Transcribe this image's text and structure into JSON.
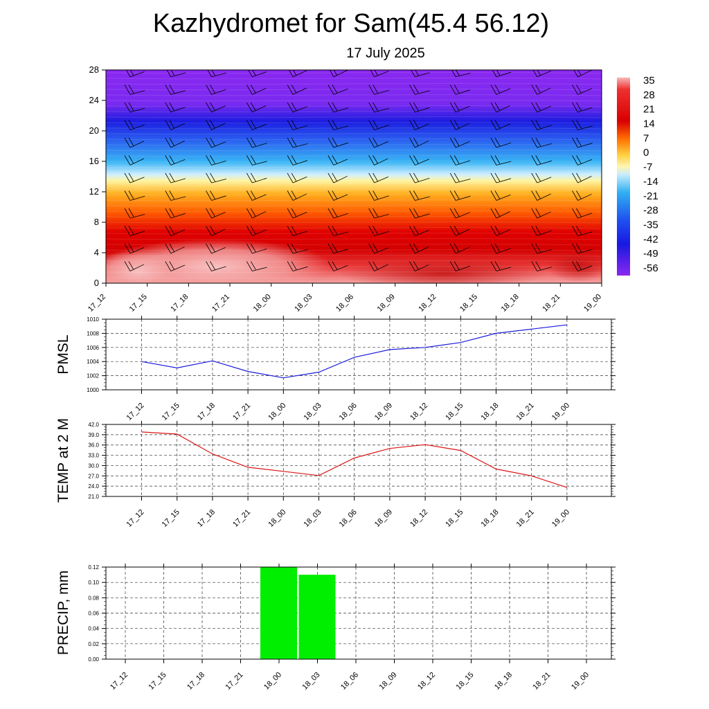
{
  "header": {
    "title": "Kazhydromet for Sam(45.4 56.12)",
    "date": "17 July 2025"
  },
  "chart_data": [
    {
      "type": "heatmap",
      "name": "temperature-cross-section",
      "x_categories": [
        "17_12",
        "17_15",
        "17_18",
        "17_21",
        "18_00",
        "18_03",
        "18_06",
        "18_09",
        "18_12",
        "18_15",
        "18_18",
        "18_21",
        "19_00"
      ],
      "yticks": [
        0,
        4,
        8,
        12,
        16,
        20,
        24,
        28
      ],
      "ylim": [
        0,
        28
      ],
      "colorbar": {
        "labels": [
          "35",
          "28",
          "21",
          "14",
          "7",
          "0",
          "-7",
          "-14",
          "-21",
          "-28",
          "-35",
          "-42",
          "-49",
          "-56"
        ],
        "range": [
          -63,
          38
        ]
      },
      "note_barbs": true
    },
    {
      "type": "line",
      "name": "pmsl",
      "ylabel": "PMSL",
      "categories": [
        "17_12",
        "17_15",
        "17_18",
        "17_21",
        "18_00",
        "18_03",
        "18_06",
        "18_09",
        "18_12",
        "18_15",
        "18_18",
        "18_21",
        "19_00"
      ],
      "values": [
        1004.0,
        1003.1,
        1004.1,
        1002.6,
        1001.7,
        1002.5,
        1004.6,
        1005.7,
        1006.0,
        1006.7,
        1008.0,
        1008.6,
        1009.2
      ],
      "yticks": [
        "1000",
        "1002",
        "1004",
        "1006",
        "1008",
        "1010"
      ],
      "ylim": [
        1000,
        1010
      ],
      "color": "#1a1adc",
      "grid": true
    },
    {
      "type": "line",
      "name": "temp2m",
      "ylabel": "TEMP at 2 M",
      "categories": [
        "17_12",
        "17_15",
        "17_18",
        "17_21",
        "18_00",
        "18_03",
        "18_06",
        "18_09",
        "18_12",
        "18_15",
        "18_18",
        "18_21",
        "19_00"
      ],
      "values": [
        39.8,
        39.2,
        33.4,
        29.5,
        28.3,
        27.1,
        32.2,
        35.0,
        36.1,
        34.4,
        29.0,
        27.0,
        23.6
      ],
      "yticks": [
        "21.0",
        "24.0",
        "27.0",
        "30.0",
        "33.0",
        "36.0",
        "39.0",
        "42.0"
      ],
      "ylim": [
        21,
        42
      ],
      "color": "#dc1414",
      "grid": true
    },
    {
      "type": "bar",
      "name": "precip",
      "ylabel": "PRECIP, mm",
      "categories": [
        "17_12",
        "17_15",
        "17_18",
        "17_21",
        "18_00",
        "18_03",
        "18_06",
        "18_09",
        "18_12",
        "18_15",
        "18_18",
        "18_21",
        "19_00"
      ],
      "values": [
        0,
        0,
        0,
        0,
        0.12,
        0.11,
        0,
        0,
        0,
        0,
        0,
        0,
        0
      ],
      "yticks": [
        "0.00",
        "0.02",
        "0.04",
        "0.06",
        "0.08",
        "0.10",
        "0.12"
      ],
      "ylim": [
        0,
        0.12
      ],
      "color": "#00ee00",
      "grid": true
    }
  ]
}
